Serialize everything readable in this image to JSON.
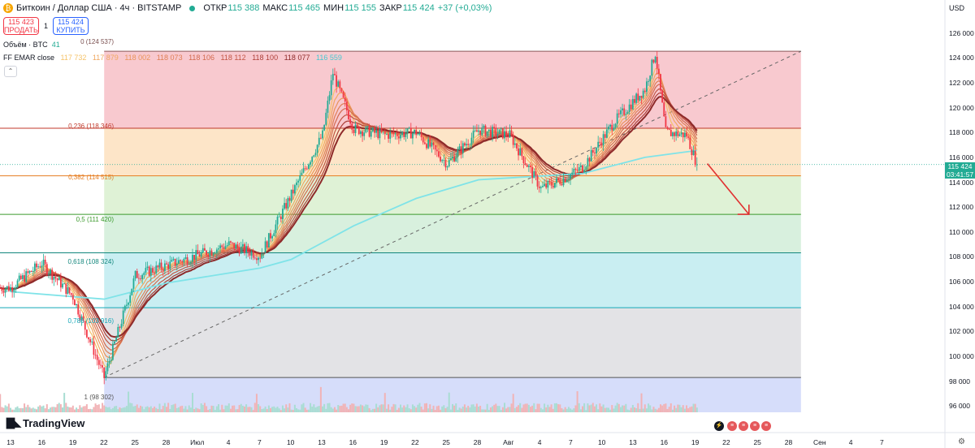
{
  "header": {
    "coin_glyph": "₿",
    "symbol": "Биткоин / Доллар США · 4ч · BITSTAMP",
    "ohlc": [
      {
        "label": "ОТКР",
        "value": "115 388"
      },
      {
        "label": "МАКС",
        "value": "115 465"
      },
      {
        "label": "МИН",
        "value": "115 155"
      },
      {
        "label": "ЗАКР",
        "value": "115 424"
      }
    ],
    "change": "+37 (+0,03%)"
  },
  "trade": {
    "sell_price": "115 423",
    "sell_label": "ПРОДАТЬ",
    "spread": "1",
    "buy_price": "115 424",
    "buy_label": "КУПИТЬ"
  },
  "legend": {
    "volume_label": "Объём · BTC",
    "volume_value": "41",
    "ema_label": "FF EMAR close",
    "ema_values": [
      "117 732",
      "117 879",
      "118 002",
      "118 073",
      "118 106",
      "118 112",
      "118 100",
      "118 077",
      "116 559"
    ],
    "collapse_glyph": "⌃"
  },
  "fib_labels": [
    "0 (124 537)",
    "0,236 (118 346)",
    "0,382 (114 515)",
    "0,5 (111 420)",
    "0,618 (108 324)",
    "0,786 (103 916)",
    "1 (98 302)"
  ],
  "price_axis": {
    "currency": "USD",
    "ticks": [
      "126 000",
      "124 000",
      "122 000",
      "120 000",
      "118 000",
      "116 000",
      "114 000",
      "112 000",
      "110 000",
      "108 000",
      "106 000",
      "104 000",
      "102 000",
      "100 000",
      "98 000",
      "96 000"
    ],
    "last_price": "115 424",
    "countdown": "03:41:57"
  },
  "time_axis": [
    "13",
    "16",
    "19",
    "22",
    "25",
    "28",
    "Июл",
    "4",
    "7",
    "10",
    "13",
    "16",
    "19",
    "22",
    "25",
    "28",
    "Авг",
    "4",
    "7",
    "10",
    "13",
    "16",
    "19",
    "22",
    "25",
    "28",
    "Сен",
    "4",
    "7"
  ],
  "branding": "TradingView",
  "colors": {
    "up": "#22ab94",
    "down": "#f23645",
    "ema_slow": "#7fe3e8",
    "fib_0": "#f8c9cf",
    "fib_236": "#fde5c8",
    "fib_382": "#dff2d6",
    "fib_5": "#d8f0de",
    "fib_618": "#c9eef2",
    "fib_786": "#e3e3e6",
    "fib_1": "#d6ddfa"
  },
  "chart_data": {
    "type": "candlestick",
    "title": "Биткоин / Доллар США · 4ч · BITSTAMP",
    "y_range": [
      95500,
      126700
    ],
    "fibonacci": [
      {
        "level": 0,
        "price": 124537
      },
      {
        "level": 0.236,
        "price": 118346
      },
      {
        "level": 0.382,
        "price": 114515
      },
      {
        "level": 0.5,
        "price": 111420
      },
      {
        "level": 0.618,
        "price": 108324
      },
      {
        "level": 0.786,
        "price": 103916
      },
      {
        "level": 1,
        "price": 98302
      }
    ],
    "anchor_points": [
      {
        "date": "13 Jun",
        "price": 105500
      },
      {
        "date": "16 Jun",
        "price": 107500
      },
      {
        "date": "19 Jun",
        "price": 104800
      },
      {
        "date": "22 Jun",
        "price": 98302
      },
      {
        "date": "25 Jun",
        "price": 106500
      },
      {
        "date": "28 Jun",
        "price": 107300
      },
      {
        "date": "4 Jul",
        "price": 109000
      },
      {
        "date": "7 Jul",
        "price": 108100
      },
      {
        "date": "10 Jul",
        "price": 113000
      },
      {
        "date": "13 Jul",
        "price": 117800
      },
      {
        "date": "14 Jul",
        "price": 122800
      },
      {
        "date": "16 Jul",
        "price": 118300
      },
      {
        "date": "19 Jul",
        "price": 117800
      },
      {
        "date": "22 Jul",
        "price": 118000
      },
      {
        "date": "25 Jul",
        "price": 115500
      },
      {
        "date": "28 Jul",
        "price": 118200
      },
      {
        "date": "31 Jul",
        "price": 117800
      },
      {
        "date": "3 Aug",
        "price": 113500
      },
      {
        "date": "5 Aug",
        "price": 114200
      },
      {
        "date": "7 Aug",
        "price": 115200
      },
      {
        "date": "10 Aug",
        "price": 118800
      },
      {
        "date": "13 Aug",
        "price": 121500
      },
      {
        "date": "14 Aug",
        "price": 124400
      },
      {
        "date": "15 Aug",
        "price": 118000
      },
      {
        "date": "17 Aug",
        "price": 117800
      },
      {
        "date": "18 Aug",
        "price": 115424
      }
    ],
    "ema_slow_points": [
      {
        "date": "13 Jun",
        "price": 105200
      },
      {
        "date": "22 Jun",
        "price": 104600
      },
      {
        "date": "28 Jun",
        "price": 105900
      },
      {
        "date": "7 Jul",
        "price": 107100
      },
      {
        "date": "10 Jul",
        "price": 107800
      },
      {
        "date": "16 Jul",
        "price": 110500
      },
      {
        "date": "22 Jul",
        "price": 112700
      },
      {
        "date": "28 Jul",
        "price": 114200
      },
      {
        "date": "3 Aug",
        "price": 114500
      },
      {
        "date": "7 Aug",
        "price": 114700
      },
      {
        "date": "13 Aug",
        "price": 116000
      },
      {
        "date": "18 Aug",
        "price": 116559
      }
    ],
    "trendline": [
      {
        "date": "22 Jun",
        "price": 98302
      },
      {
        "date": "28 Aug",
        "price": 124537
      }
    ],
    "forecast_arrow": [
      {
        "date": "19 Aug",
        "price": 115500
      },
      {
        "date": "23 Aug",
        "price": 111420
      }
    ],
    "last_close": 115424
  }
}
